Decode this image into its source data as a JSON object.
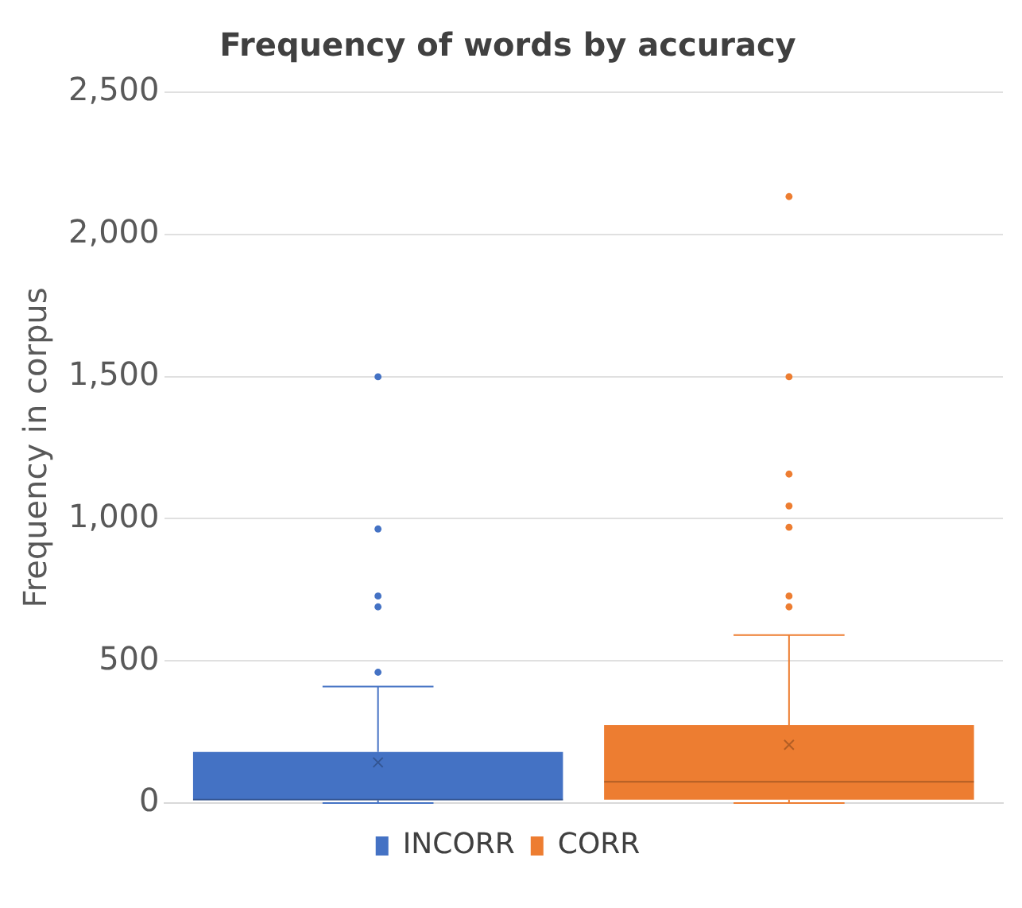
{
  "chart_data": {
    "type": "box",
    "title": "Frequency of words by accuracy",
    "ylabel": "Frequency in corpus",
    "categories": [
      null
    ],
    "series": [
      {
        "name": "INCORR",
        "color": "#4472c4",
        "boxes": [
          {
            "low": 0,
            "q1": 10,
            "median": 12,
            "q3": 180,
            "high": 410,
            "mean": 143,
            "outliers": [
              460,
              690,
              728,
              964,
              1499
            ]
          }
        ]
      },
      {
        "name": "CORR",
        "color": "#ed7d31",
        "boxes": [
          {
            "low": 0,
            "q1": 12,
            "median": 75,
            "q3": 274,
            "high": 591,
            "mean": 205,
            "outliers": [
              690,
              728,
              970,
              1045,
              1157,
              1499,
              2133
            ]
          }
        ]
      }
    ],
    "ylim": [
      0,
      2500
    ],
    "yticks": [
      0,
      500,
      {
        "value": 1000,
        "label": "1,000"
      },
      {
        "value": 1500,
        "label": "1,500"
      },
      {
        "value": 2000,
        "label": "2,000"
      },
      {
        "value": 2500,
        "label": "2,500"
      }
    ],
    "grid": "y",
    "legend": "bottom"
  }
}
